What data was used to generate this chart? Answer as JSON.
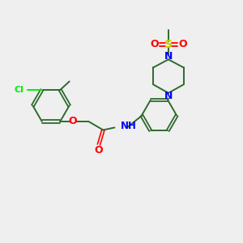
{
  "background_color": "#efefef",
  "ring_color": "#2d6b2d",
  "bond_color": "#2d6b2d",
  "cl_color": "#00ee00",
  "o_color": "#ff0000",
  "n_color": "#0000ff",
  "s_color": "#cccc00",
  "figsize": [
    3.0,
    3.0
  ],
  "dpi": 100,
  "xlim": [
    0,
    10
  ],
  "ylim": [
    0,
    9
  ]
}
